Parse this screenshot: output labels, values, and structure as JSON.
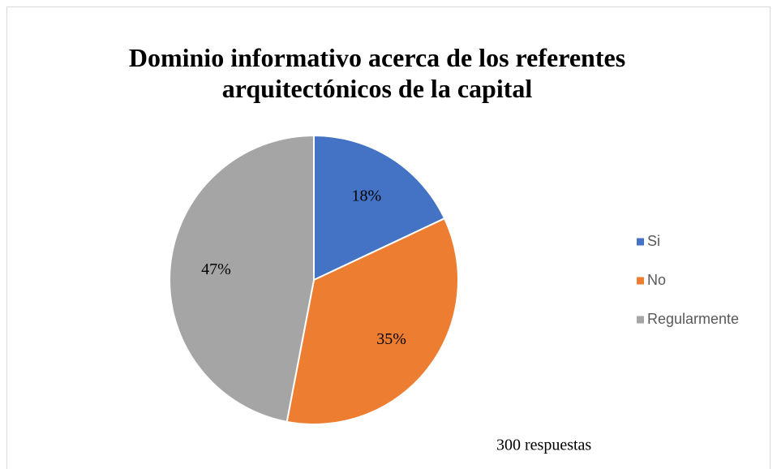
{
  "chart_data": {
    "type": "pie",
    "title": "Dominio informativo acerca de los referentes arquitectónicos de la capital",
    "categories": [
      "Si",
      "No",
      "Regularmente"
    ],
    "values": [
      18,
      35,
      47
    ],
    "value_labels": [
      "18%",
      "35%",
      "47%"
    ],
    "colors": [
      "#4472c4",
      "#ed7d31",
      "#a5a5a5"
    ],
    "annotation": "300 respuestas",
    "legend": "right"
  }
}
